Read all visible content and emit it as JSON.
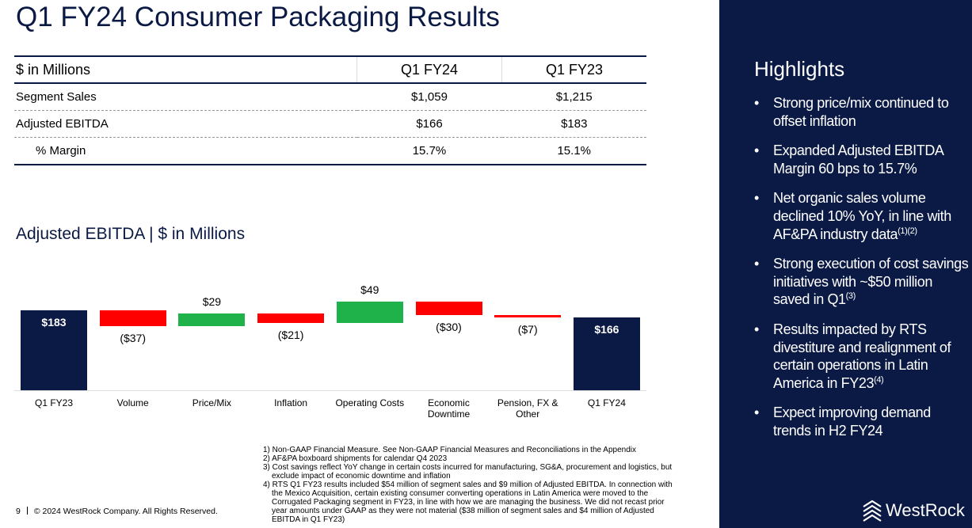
{
  "title": "Q1 FY24 Consumer Packaging Results",
  "table": {
    "header": [
      "$ in Millions",
      "Q1 FY24",
      "Q1 FY23"
    ],
    "rows": [
      [
        "Segment Sales",
        "$1,059",
        "$1,215"
      ],
      [
        "Adjusted EBITDA",
        "$166",
        "$183"
      ],
      [
        "% Margin",
        "15.7%",
        "15.1%"
      ]
    ]
  },
  "chart_data": {
    "type": "waterfall",
    "title": "Adjusted EBITDA | $ in Millions",
    "categories": [
      "Q1 FY23",
      "Volume",
      "Price/Mix",
      "Inflation",
      "Operating Costs",
      "Economic Downtime",
      "Pension, FX & Other",
      "Q1 FY24"
    ],
    "values": [
      183,
      -37,
      29,
      -21,
      49,
      -30,
      -7,
      166
    ],
    "value_labels": [
      "$183",
      "($37)",
      "$29",
      "($21)",
      "$49",
      "($30)",
      "($7)",
      "$166"
    ],
    "totals": [
      true,
      false,
      false,
      false,
      false,
      false,
      false,
      true
    ],
    "colors": {
      "total": "#0b1a44",
      "increase": "#1fb24a",
      "decrease": "#ff0000"
    }
  },
  "highlights": {
    "title": "Highlights",
    "items": [
      {
        "text": "Strong price/mix continued to offset inflation"
      },
      {
        "text": "Expanded Adjusted EBITDA Margin 60 bps to 15.7%"
      },
      {
        "text": "Net organic sales volume declined 10% YoY, in line with AF&PA industry data",
        "sup": "(1)(2)"
      },
      {
        "text": "Strong execution of cost savings initiatives with ~$50 million saved in Q1",
        "sup": "(3)"
      },
      {
        "text": "Results impacted by RTS divestiture and realignment of certain operations in Latin America in FY23",
        "sup": "(4)"
      },
      {
        "text": "Expect improving demand trends in H2 FY24"
      }
    ]
  },
  "footnotes": [
    "1) Non-GAAP Financial Measure. See Non-GAAP Financial Measures and Reconciliations in the Appendix",
    "2) AF&PA boxboard shipments for calendar Q4 2023",
    "3) Cost savings reflect YoY change in certain costs incurred for manufacturing, SG&A, procurement and logistics, but exclude impact of economic downtime and inflation",
    "4) RTS Q1 FY23 results included $54 million of segment sales and $9 million of Adjusted EBITDA. In connection with the Mexico Acquisition, certain existing consumer converting operations in Latin America were moved to the Corrugated Packaging segment in FY23, in line with how we are managing the business. We did not recast prior year amounts under GAAP as they were not material ($38 million of segment sales and $4 million of Adjusted EBITDA in Q1 FY23)"
  ],
  "footer": {
    "page": "9",
    "copyright": "© 2024 WestRock Company. All Rights Reserved."
  },
  "logo": "WestRock"
}
